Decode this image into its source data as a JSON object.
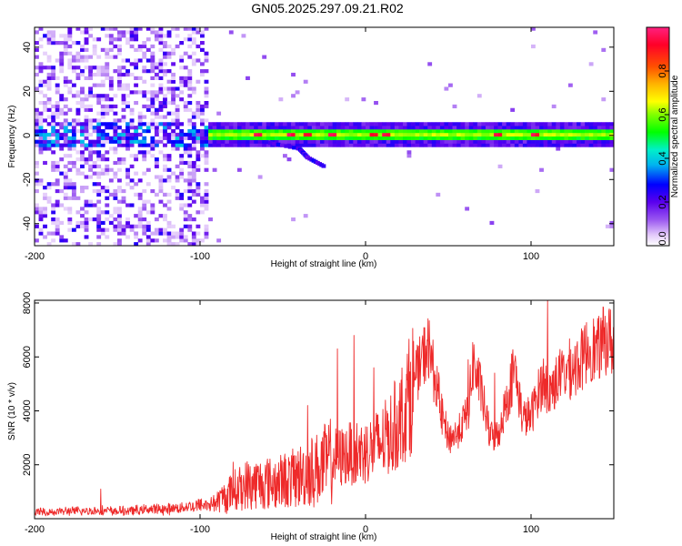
{
  "figure_title": "GN05.2025.297.09.21.R02",
  "colors": {
    "snr_line": "#ee2a2a",
    "frame": "#000000",
    "background": "#ffffff"
  },
  "chart_data": [
    {
      "type": "heatmap",
      "title": "GN05.2025.297.09.21.R02",
      "xlabel": "Height of straight line (km)",
      "ylabel": "Frequency (Hz)",
      "xlim": [
        -200,
        150
      ],
      "ylim": [
        -50,
        49
      ],
      "xticks": [
        -200,
        -100,
        0,
        100
      ],
      "xtick_labels": [
        "-200",
        "-100",
        "0",
        "100"
      ],
      "yticks": [
        -40,
        -20,
        0,
        20,
        40
      ],
      "ytick_labels": [
        "-40",
        "-20",
        "0",
        "20",
        "40"
      ],
      "colorbar": {
        "label": "Normalized spectral amplitude",
        "range": [
          0,
          1
        ],
        "ticks": [
          0.0,
          0.2,
          0.4,
          0.6,
          0.8
        ],
        "tick_labels": [
          "0.0",
          "0.2",
          "0.4",
          "0.6",
          "0.8"
        ]
      },
      "features": {
        "scatter_region_km": [
          -200,
          -95
        ],
        "band_center_hz": 0.5,
        "band_halfwidth_hz": 3,
        "peak_heights_km": [
          -65,
          -45,
          -35,
          -20,
          5,
          12,
          80,
          102
        ],
        "descending_trace": [
          [
            -60,
            -3
          ],
          [
            -40,
            -6
          ],
          [
            -35,
            -10
          ],
          [
            -25,
            -14
          ]
        ]
      }
    },
    {
      "type": "line",
      "xlabel": "Height of straight line (km)",
      "ylabel": "SNR (10 * v/v)",
      "xlim": [
        -200,
        150
      ],
      "ylim": [
        0,
        8100
      ],
      "xticks": [
        -200,
        -100,
        0,
        100
      ],
      "xtick_labels": [
        "-200",
        "-100",
        "0",
        "100"
      ],
      "yticks": [
        2000,
        4000,
        6000,
        8000
      ],
      "ytick_labels": [
        "2000",
        "4000",
        "6000",
        "8000"
      ],
      "series": [
        {
          "name": "SNR",
          "x": [
            -200,
            -190,
            -180,
            -170,
            -160,
            -150,
            -140,
            -130,
            -120,
            -110,
            -100,
            -90,
            -80,
            -72,
            -65,
            -55,
            -45,
            -35,
            -28,
            -20,
            -14,
            -8,
            0,
            5,
            10,
            15,
            20,
            25,
            30,
            35,
            38,
            42,
            47,
            50,
            55,
            60,
            62,
            65,
            70,
            75,
            78,
            80,
            85,
            90,
            95,
            100,
            105,
            108,
            110,
            115,
            120,
            125,
            130,
            135,
            140,
            145,
            150
          ],
          "values": [
            250,
            250,
            280,
            280,
            300,
            280,
            300,
            350,
            350,
            420,
            500,
            600,
            1000,
            1250,
            1300,
            1350,
            1450,
            1700,
            1900,
            2200,
            2300,
            2450,
            2500,
            2650,
            2850,
            3200,
            3600,
            4300,
            5200,
            6000,
            6400,
            5200,
            3600,
            3000,
            3100,
            3700,
            4000,
            5800,
            4700,
            3100,
            3000,
            3100,
            4300,
            5600,
            3700,
            3800,
            4800,
            5200,
            4600,
            5100,
            5400,
            5600,
            5800,
            6400,
            6200,
            6700,
            6500
          ]
        }
      ],
      "spikes": [
        [
          -160,
          1100
        ],
        [
          -80,
          2100
        ],
        [
          -35,
          4200
        ],
        [
          -17,
          6300
        ],
        [
          -7,
          6800
        ],
        [
          5,
          5600
        ],
        [
          62,
          5900
        ],
        [
          78,
          5400
        ],
        [
          110,
          8100
        ]
      ]
    }
  ]
}
